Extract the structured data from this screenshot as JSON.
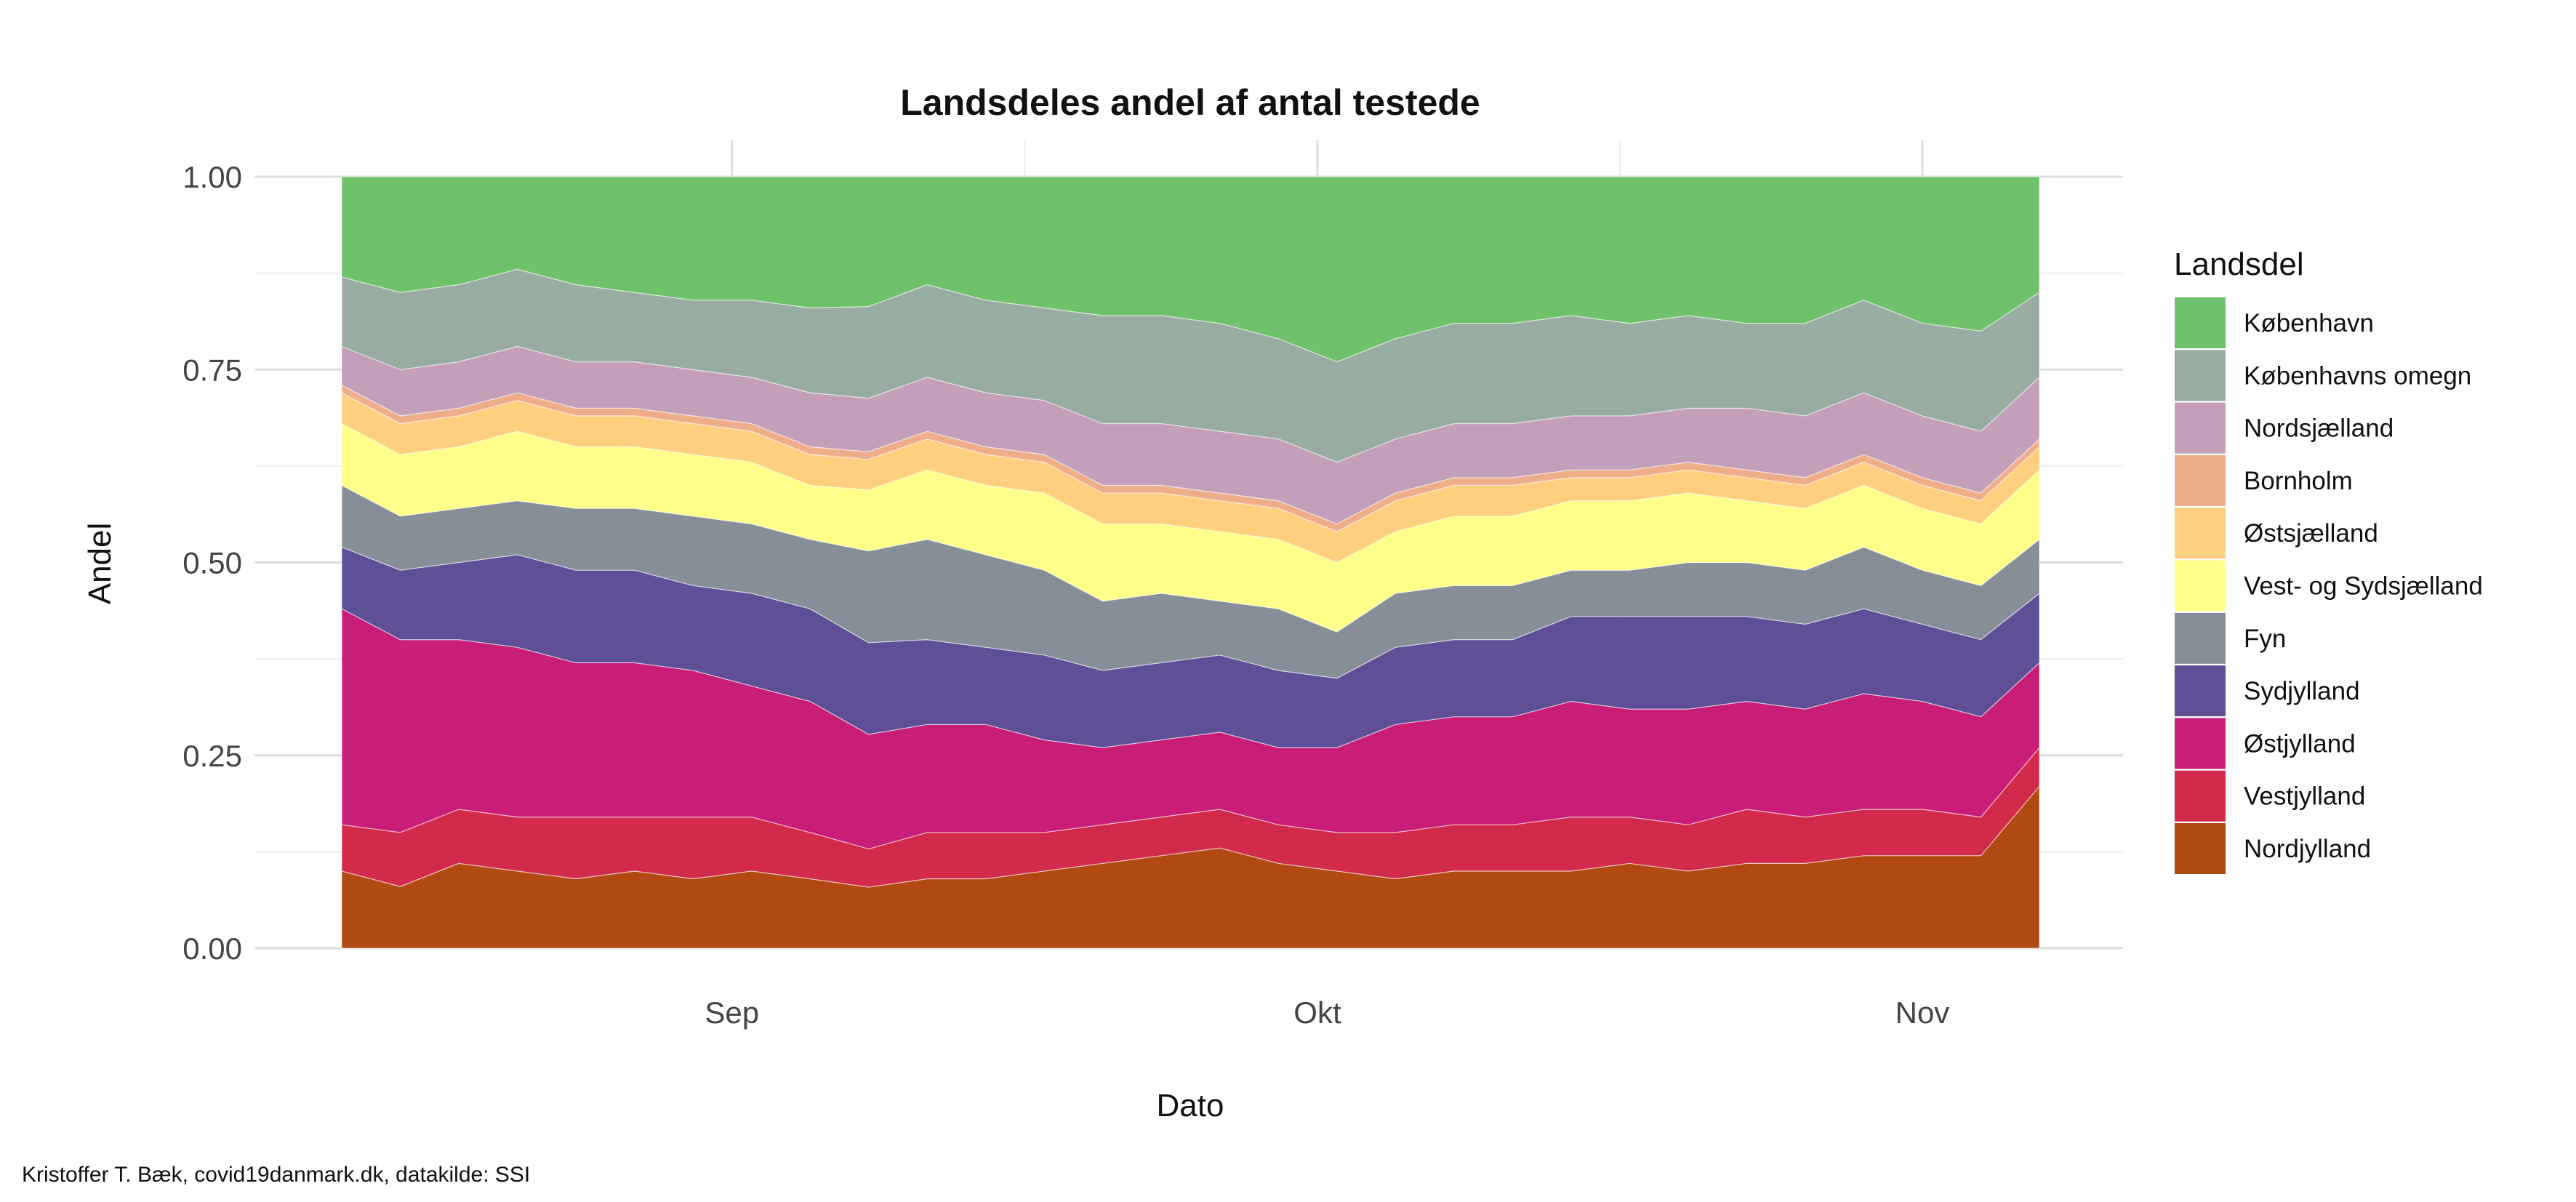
{
  "chart_data": {
    "type": "area",
    "stacked": "fill",
    "title": "Landsdeles andel af antal testede",
    "xlabel": "Dato",
    "ylabel": "Andel",
    "caption": "Kristoffer T. Bæk, covid19danmark.dk, datakilde: SSI",
    "ylim": [
      0,
      1
    ],
    "y_ticks": [
      "0.00",
      "0.25",
      "0.50",
      "0.75",
      "1.00"
    ],
    "x_ticks": [
      {
        "label": "Sep",
        "date": "2020-09-01"
      },
      {
        "label": "Okt",
        "date": "2020-10-01"
      },
      {
        "label": "Nov",
        "date": "2020-11-01"
      }
    ],
    "grid": true,
    "legend_position": "right",
    "legend_title": "Landsdel",
    "x": [
      "2020-08-12",
      "2020-08-15",
      "2020-08-18",
      "2020-08-21",
      "2020-08-24",
      "2020-08-27",
      "2020-08-30",
      "2020-09-02",
      "2020-09-05",
      "2020-09-08",
      "2020-09-11",
      "2020-09-14",
      "2020-09-17",
      "2020-09-20",
      "2020-09-23",
      "2020-09-26",
      "2020-09-29",
      "2020-10-02",
      "2020-10-05",
      "2020-10-08",
      "2020-10-11",
      "2020-10-14",
      "2020-10-17",
      "2020-10-20",
      "2020-10-23",
      "2020-10-26",
      "2020-10-29",
      "2020-11-01",
      "2020-11-04",
      "2020-11-07"
    ],
    "series": [
      {
        "name": "Nordjylland",
        "color": "#b04a12",
        "values": [
          0.1,
          0.08,
          0.11,
          0.1,
          0.09,
          0.1,
          0.09,
          0.1,
          0.09,
          0.08,
          0.09,
          0.09,
          0.1,
          0.11,
          0.12,
          0.13,
          0.11,
          0.1,
          0.09,
          0.1,
          0.1,
          0.1,
          0.11,
          0.1,
          0.11,
          0.11,
          0.12,
          0.12,
          0.12,
          0.21
        ]
      },
      {
        "name": "Vestjylland",
        "color": "#d22a4a",
        "values": [
          0.06,
          0.07,
          0.07,
          0.07,
          0.08,
          0.07,
          0.08,
          0.07,
          0.06,
          0.05,
          0.06,
          0.06,
          0.05,
          0.05,
          0.05,
          0.05,
          0.05,
          0.05,
          0.06,
          0.06,
          0.06,
          0.07,
          0.06,
          0.06,
          0.07,
          0.06,
          0.06,
          0.06,
          0.05,
          0.05
        ]
      },
      {
        "name": "Østjylland",
        "color": "#c91e78",
        "values": [
          0.28,
          0.25,
          0.22,
          0.22,
          0.2,
          0.2,
          0.19,
          0.17,
          0.17,
          0.15,
          0.14,
          0.14,
          0.12,
          0.1,
          0.1,
          0.1,
          0.1,
          0.11,
          0.14,
          0.14,
          0.14,
          0.15,
          0.14,
          0.15,
          0.14,
          0.14,
          0.15,
          0.14,
          0.13,
          0.11
        ]
      },
      {
        "name": "Sydjylland",
        "color": "#5e4f97",
        "values": [
          0.08,
          0.09,
          0.1,
          0.12,
          0.12,
          0.12,
          0.11,
          0.12,
          0.12,
          0.12,
          0.11,
          0.1,
          0.11,
          0.1,
          0.1,
          0.1,
          0.1,
          0.09,
          0.1,
          0.1,
          0.1,
          0.11,
          0.12,
          0.12,
          0.11,
          0.11,
          0.11,
          0.1,
          0.1,
          0.09
        ]
      },
      {
        "name": "Fyn",
        "color": "#868f98",
        "values": [
          0.08,
          0.07,
          0.07,
          0.07,
          0.08,
          0.08,
          0.09,
          0.09,
          0.09,
          0.12,
          0.13,
          0.12,
          0.11,
          0.09,
          0.09,
          0.07,
          0.08,
          0.06,
          0.07,
          0.07,
          0.07,
          0.06,
          0.06,
          0.07,
          0.07,
          0.07,
          0.08,
          0.07,
          0.07,
          0.07
        ]
      },
      {
        "name": "Vest- og Sydsjælland",
        "color": "#ffff8a",
        "values": [
          0.08,
          0.08,
          0.08,
          0.09,
          0.08,
          0.08,
          0.08,
          0.08,
          0.07,
          0.08,
          0.09,
          0.09,
          0.1,
          0.1,
          0.09,
          0.09,
          0.09,
          0.09,
          0.08,
          0.09,
          0.09,
          0.09,
          0.09,
          0.09,
          0.08,
          0.08,
          0.08,
          0.08,
          0.08,
          0.09
        ]
      },
      {
        "name": "Østsjælland",
        "color": "#fdcf7e",
        "values": [
          0.04,
          0.04,
          0.04,
          0.04,
          0.04,
          0.04,
          0.04,
          0.04,
          0.04,
          0.04,
          0.04,
          0.04,
          0.04,
          0.04,
          0.04,
          0.04,
          0.04,
          0.04,
          0.04,
          0.04,
          0.04,
          0.03,
          0.03,
          0.03,
          0.03,
          0.03,
          0.03,
          0.03,
          0.03,
          0.03
        ]
      },
      {
        "name": "Bornholm",
        "color": "#efae8a",
        "values": [
          0.01,
          0.01,
          0.01,
          0.01,
          0.01,
          0.01,
          0.01,
          0.01,
          0.01,
          0.01,
          0.01,
          0.01,
          0.01,
          0.01,
          0.01,
          0.01,
          0.01,
          0.01,
          0.01,
          0.01,
          0.01,
          0.01,
          0.01,
          0.01,
          0.01,
          0.01,
          0.01,
          0.01,
          0.01,
          0.01
        ]
      },
      {
        "name": "Nordsjælland",
        "color": "#c39fb9",
        "values": [
          0.05,
          0.06,
          0.06,
          0.06,
          0.06,
          0.06,
          0.06,
          0.06,
          0.07,
          0.07,
          0.07,
          0.07,
          0.07,
          0.08,
          0.08,
          0.08,
          0.08,
          0.08,
          0.07,
          0.07,
          0.07,
          0.07,
          0.07,
          0.07,
          0.08,
          0.08,
          0.08,
          0.08,
          0.08,
          0.08
        ]
      },
      {
        "name": "Københavns omegn",
        "color": "#99aca1",
        "values": [
          0.09,
          0.1,
          0.1,
          0.1,
          0.1,
          0.09,
          0.09,
          0.1,
          0.11,
          0.12,
          0.12,
          0.12,
          0.12,
          0.14,
          0.14,
          0.14,
          0.13,
          0.13,
          0.13,
          0.13,
          0.13,
          0.13,
          0.12,
          0.12,
          0.11,
          0.12,
          0.12,
          0.12,
          0.13,
          0.11
        ]
      },
      {
        "name": "København",
        "color": "#6fc16c",
        "values": [
          0.13,
          0.15,
          0.14,
          0.12,
          0.14,
          0.15,
          0.16,
          0.16,
          0.17,
          0.17,
          0.14,
          0.16,
          0.17,
          0.18,
          0.18,
          0.19,
          0.21,
          0.24,
          0.21,
          0.19,
          0.19,
          0.18,
          0.19,
          0.18,
          0.19,
          0.19,
          0.16,
          0.19,
          0.2,
          0.15
        ]
      }
    ]
  }
}
